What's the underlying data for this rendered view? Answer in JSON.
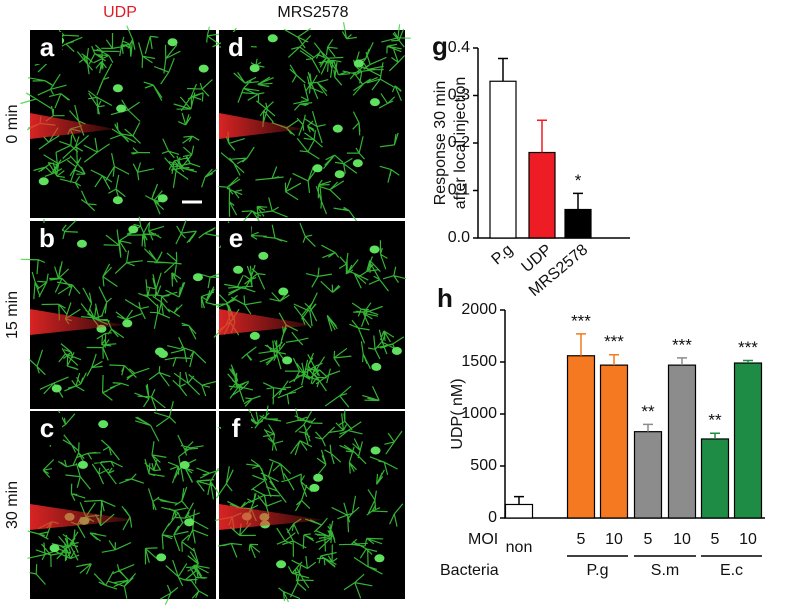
{
  "columns": [
    "UDP",
    "MRS2578"
  ],
  "rows": [
    "0 min",
    "15 min",
    "30 min"
  ],
  "panels": [
    [
      "a",
      "d"
    ],
    [
      "b",
      "e"
    ],
    [
      "c",
      "f"
    ]
  ],
  "chart_data": [
    {
      "panel": "g",
      "type": "bar",
      "ylabel": [
        "Response 30 min",
        "after local injection"
      ],
      "categories": [
        "P.g",
        "UDP",
        "MRS2578"
      ],
      "values": [
        0.33,
        0.18,
        0.06
      ],
      "errors": [
        0.048,
        0.068,
        0.034
      ],
      "colors": [
        "#ffffff",
        "#ee1c25",
        "#000000"
      ],
      "sig_labels": [
        null,
        null,
        "*"
      ],
      "ylim": [
        0,
        0.4
      ],
      "yticks": [
        {
          "value": 0,
          "label": "0.0"
        },
        0.1,
        0.2,
        0.3,
        0.4
      ]
    },
    {
      "panel": "h",
      "type": "bar",
      "ylabel": "UDP( nM)",
      "categories": [
        null,
        "5",
        "10",
        "5",
        "10",
        "5",
        "10"
      ],
      "values": [
        130,
        1560,
        1470,
        830,
        1470,
        760,
        1490
      ],
      "errors": [
        75,
        210,
        100,
        70,
        70,
        55,
        25
      ],
      "colors": [
        "#ffffff",
        "#f47920",
        "#f47920",
        "#8c8c8c",
        "#8c8c8c",
        "#1e8c45",
        "#1e8c45"
      ],
      "sig_labels": [
        null,
        "***",
        "***",
        "**",
        "***",
        "**",
        "***"
      ],
      "row_labels": [
        "MOI",
        "Bacteria"
      ],
      "groups": [
        {
          "name": "non",
          "size": 1
        },
        {
          "name": "P.g",
          "size": 2
        },
        {
          "name": "S.m",
          "size": 2
        },
        {
          "name": "E.c",
          "size": 2
        }
      ],
      "ylim": [
        0,
        2000
      ],
      "yticks": [
        0,
        500,
        1000,
        1500,
        2000
      ]
    }
  ]
}
